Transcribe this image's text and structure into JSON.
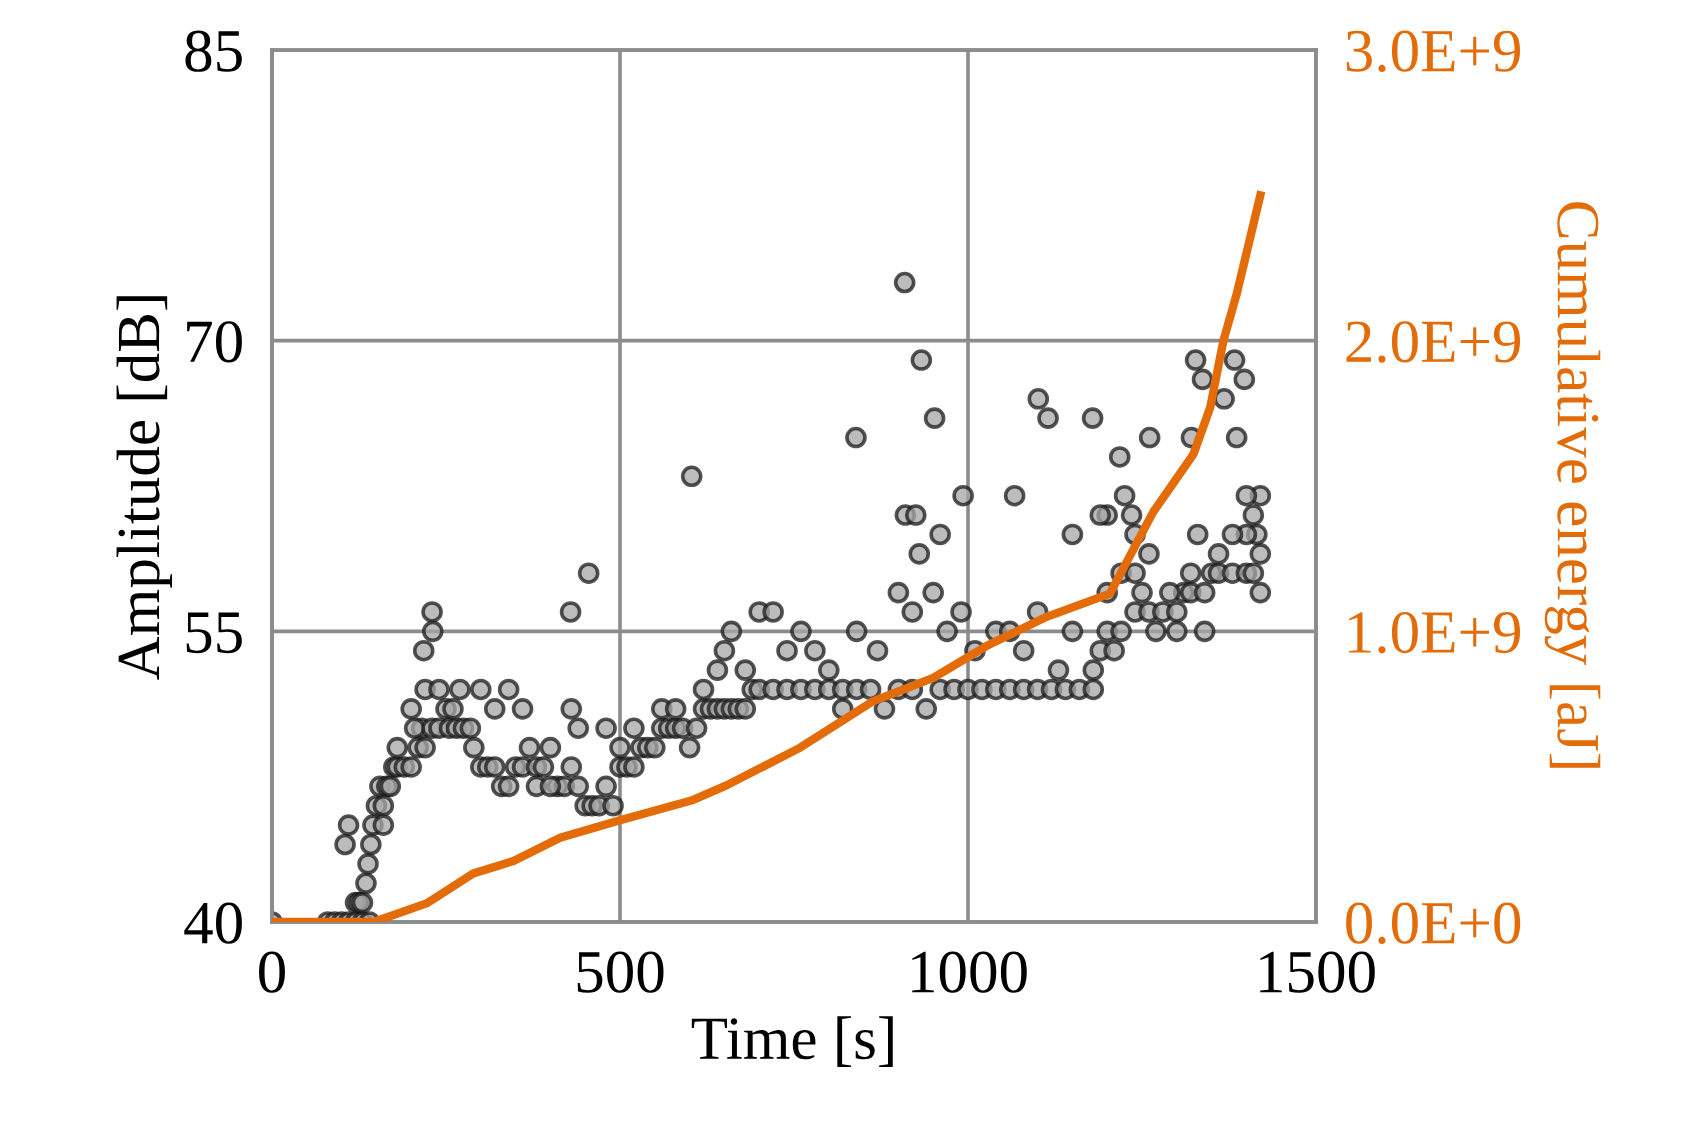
{
  "chart_data": {
    "type": "scatter",
    "xlabel": "Time [s]",
    "ylabel": "Amplitude [dB]",
    "y2label": "Cumulative energy [aJ]",
    "xlim": [
      0,
      1500
    ],
    "xticks": [
      0,
      500,
      1000,
      1500
    ],
    "ylim": [
      40,
      85
    ],
    "yticks": [
      40,
      55,
      70,
      85
    ],
    "y2lim": [
      0,
      3000000000
    ],
    "y2ticks": [
      {
        "value": 0,
        "label": "0.0E+0"
      },
      {
        "value": 1000000000,
        "label": "1.0E+9"
      },
      {
        "value": 2000000000,
        "label": "2.0E+9"
      },
      {
        "value": 3000000000,
        "label": "3.0E+9"
      }
    ],
    "grid": true,
    "marker": "circle",
    "series": [
      {
        "color": "#a6a6a6",
        "x": [
          0,
          80,
          90,
          100,
          110,
          120,
          130,
          140,
          120,
          125,
          130,
          135,
          138,
          142,
          145,
          150,
          155,
          160,
          165,
          170,
          175,
          180,
          190,
          200,
          210,
          215,
          205,
          220,
          230,
          240,
          250,
          255,
          265,
          275,
          285,
          290,
          300,
          310,
          320,
          330,
          340,
          350,
          360,
          370,
          380,
          390,
          400,
          410,
          420,
          430,
          440,
          450,
          460,
          470,
          480,
          490,
          500,
          510,
          520,
          530,
          540,
          550,
          560,
          570,
          580,
          590,
          600,
          610,
          620,
          630,
          640,
          650,
          660,
          670,
          680,
          690,
          700,
          720,
          740,
          760,
          780,
          800,
          820,
          840,
          860,
          880,
          900,
          920,
          940,
          960,
          980,
          1000,
          1020,
          1040,
          1060,
          1080,
          1100,
          1120,
          1140,
          1160,
          1180,
          1190,
          1200,
          1210,
          1220,
          1240,
          1260,
          1280,
          1300,
          1310,
          1320,
          1340,
          1350,
          1360,
          1380,
          1400,
          1410,
          1420,
          1420,
          1415,
          1410,
          1420,
          1400,
          160,
          180,
          200,
          220,
          240,
          260,
          270,
          300,
          320,
          340,
          360,
          380,
          400,
          430,
          440,
          480,
          500,
          520,
          560,
          580,
          620,
          640,
          650,
          660,
          680,
          700,
          720,
          740,
          760,
          780,
          800,
          820,
          840,
          870,
          900,
          920,
          930,
          950,
          970,
          990,
          1010,
          1040,
          1060,
          1080,
          1100,
          1130,
          1150,
          1180,
          1200,
          1220,
          1240,
          1260,
          1290,
          1320,
          1330,
          1360,
          1380,
          1400,
          1300,
          1340,
          1270,
          1250,
          1200,
          1190,
          1240,
          603,
          909,
          933,
          952,
          839,
          1101,
          1115,
          1179,
          1327,
          1383,
          1218,
          1261,
          1321,
          1386,
          1337,
          1368,
          1397,
          993,
          1067,
          1225,
          455,
          429,
          230,
          231,
          218,
          105,
          110,
          910,
          925,
          960,
          1150,
          1235
        ],
        "values": [
          40,
          40,
          40,
          40,
          40,
          40,
          40,
          40,
          41,
          41,
          41,
          42,
          43,
          44,
          45,
          46,
          47,
          46,
          47,
          47,
          48,
          48,
          48,
          48,
          49,
          50,
          50,
          49,
          50,
          50,
          51,
          50,
          50,
          50,
          50,
          49,
          48,
          48,
          48,
          47,
          47,
          48,
          48,
          49,
          48,
          48,
          49,
          47,
          47,
          48,
          47,
          46,
          46,
          46,
          47,
          46,
          48,
          48,
          48,
          49,
          49,
          49,
          50,
          50,
          50,
          50,
          49,
          50,
          51,
          51,
          51,
          51,
          51,
          51,
          51,
          52,
          52,
          52,
          52,
          52,
          52,
          52,
          52,
          52,
          52,
          51,
          52,
          52,
          51,
          52,
          52,
          52,
          52,
          52,
          52,
          52,
          52,
          52,
          52,
          52,
          53,
          54,
          55,
          54,
          55,
          56,
          56,
          56,
          56,
          57,
          57,
          57,
          58,
          58,
          58,
          58,
          58,
          57,
          59,
          60,
          61,
          62,
          60,
          45,
          49,
          51,
          52,
          52,
          51,
          52,
          52,
          51,
          52,
          51,
          47,
          47,
          51,
          50,
          50,
          49,
          50,
          51,
          51,
          52,
          53,
          54,
          55,
          53,
          56,
          56,
          54,
          55,
          54,
          53,
          51,
          55,
          54,
          57,
          56,
          59,
          57,
          55,
          56,
          54,
          55,
          55,
          54,
          56,
          53,
          55,
          52,
          57,
          58,
          58,
          59,
          57,
          58,
          60,
          59,
          60,
          62,
          55,
          55,
          55,
          57,
          61,
          61,
          60,
          63,
          73,
          69,
          66,
          65,
          67,
          66,
          66,
          69,
          69,
          64,
          65,
          65,
          65,
          68,
          67,
          68,
          62,
          62,
          62,
          58,
          56,
          56,
          55,
          54,
          44,
          45,
          61,
          61,
          60,
          60,
          61
        ]
      },
      {
        "type": "line",
        "axis": "y2",
        "color": "#e36c09",
        "marker": "none",
        "x": [
          0,
          146,
          222,
          289,
          347,
          414,
          500,
          605,
          653,
          759,
          864,
          950,
          1027,
          1113,
          1204,
          1266,
          1324,
          1348,
          1367,
          1386,
          1420
        ],
        "values": [
          0,
          0,
          64000000,
          167000000,
          210000000,
          290000000,
          350000000,
          420000000,
          470000000,
          600000000,
          760000000,
          840000000,
          950000000,
          1050000000,
          1130000000,
          1410000000,
          1610000000,
          1770000000,
          2000000000,
          2160000000,
          2500000000
        ]
      }
    ]
  }
}
